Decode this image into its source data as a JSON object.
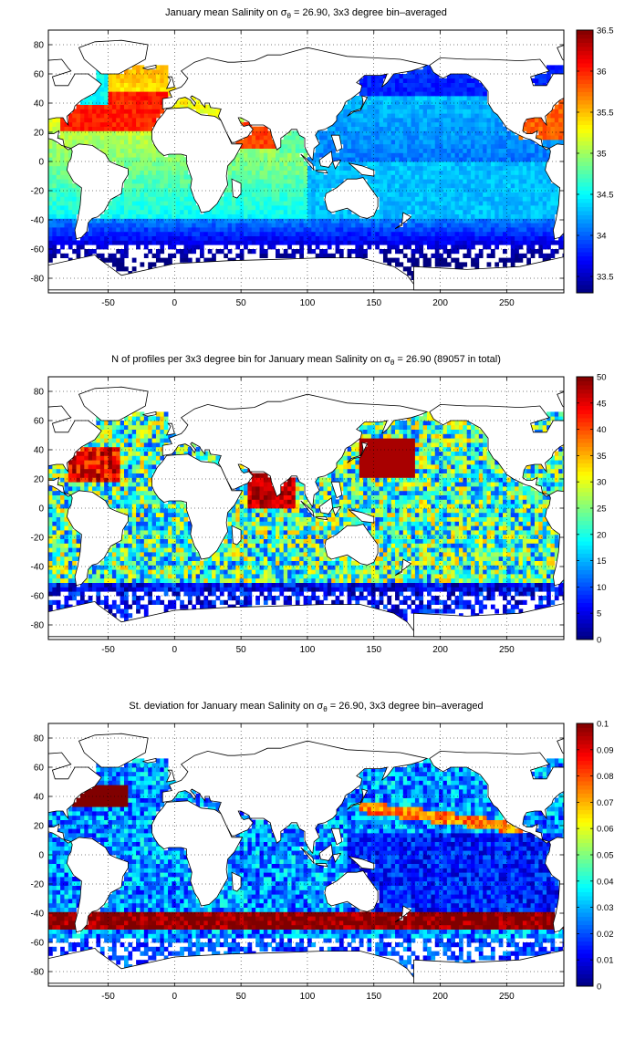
{
  "figure": {
    "panels": [
      {
        "id": "mean",
        "title_pre": "January mean Salinity on ",
        "title_sym": "σ",
        "title_sub": "θ",
        "title_post": " = 26.90, 3x3 degree bin–averaged",
        "colorbar_ticks": [
          "33.5",
          "34",
          "34.5",
          "35",
          "35.5",
          "36",
          "36.5"
        ]
      },
      {
        "id": "count",
        "title_pre": "N of profiles per 3x3 degree bin for January mean Salinity on ",
        "title_sym": "σ",
        "title_sub": "θ",
        "title_post": " = 26.90 (89057 in total)",
        "colorbar_ticks": [
          "0",
          "5",
          "10",
          "15",
          "20",
          "25",
          "30",
          "35",
          "40",
          "45",
          "50"
        ]
      },
      {
        "id": "std",
        "title_pre": "St. deviation for January mean Salinity on ",
        "title_sym": "σ",
        "title_sub": "θ",
        "title_post": " = 26.90, 3x3 degree bin–averaged",
        "colorbar_ticks": [
          "0",
          "0.01",
          "0.02",
          "0.03",
          "0.04",
          "0.05",
          "0.06",
          "0.07",
          "0.08",
          "0.09",
          "0.1"
        ]
      }
    ],
    "x_tick_labels": [
      "-50",
      "0",
      "50",
      "100",
      "150",
      "200",
      "250"
    ],
    "y_tick_labels": [
      "80",
      "60",
      "40",
      "20",
      "0",
      "-20",
      "-40",
      "-60",
      "-80"
    ]
  },
  "chart_data": [
    {
      "type": "heatmap",
      "title": "January mean Salinity on σθ = 26.90, 3x3 degree bin–averaged",
      "xlim": [
        -95,
        293
      ],
      "ylim": [
        -90,
        90
      ],
      "x_ticks": [
        -50,
        0,
        50,
        100,
        150,
        200,
        250
      ],
      "y_ticks": [
        -80,
        -60,
        -40,
        -20,
        0,
        20,
        40,
        60,
        80
      ],
      "grid": true,
      "colorbar": {
        "min": 33.3,
        "max": 36.5,
        "ticks": [
          33.5,
          34,
          34.5,
          35,
          35.5,
          36,
          36.5
        ],
        "colormap": "jet"
      },
      "bin_size_deg": 3,
      "regions": [
        {
          "lon": [
            -80,
            -10
          ],
          "lat": [
            20,
            45
          ],
          "value": 36.1
        },
        {
          "lon": [
            -60,
            0
          ],
          "lat": [
            0,
            20
          ],
          "value": 35.2
        },
        {
          "lon": [
            45,
            75
          ],
          "lat": [
            10,
            26
          ],
          "value": 35.9
        },
        {
          "lon": [
            -60,
            20
          ],
          "lat": [
            -40,
            0
          ],
          "value": 34.7
        },
        {
          "lon": [
            20,
            120
          ],
          "lat": [
            -40,
            25
          ],
          "value": 34.7
        },
        {
          "lon": [
            120,
            295
          ],
          "lat": [
            -40,
            60
          ],
          "value": 34.3
        },
        {
          "lon": [
            -95,
            293
          ],
          "lat": [
            -60,
            -40
          ],
          "value": 34.0
        },
        {
          "lon": [
            -95,
            293
          ],
          "lat": [
            -80,
            -60
          ],
          "value": 33.6
        }
      ]
    },
    {
      "type": "heatmap",
      "title": "N of profiles per 3x3 degree bin for January mean Salinity on σθ = 26.90 (89057 in total)",
      "xlim": [
        -95,
        293
      ],
      "ylim": [
        -90,
        90
      ],
      "x_ticks": [
        -50,
        0,
        50,
        100,
        150,
        200,
        250
      ],
      "y_ticks": [
        -80,
        -60,
        -40,
        -20,
        0,
        20,
        40,
        60,
        80
      ],
      "grid": true,
      "colorbar": {
        "min": 0,
        "max": 50,
        "ticks": [
          0,
          5,
          10,
          15,
          20,
          25,
          30,
          35,
          40,
          45,
          50
        ],
        "colormap": "jet"
      },
      "bin_size_deg": 3,
      "total_profiles": 89057,
      "regions": [
        {
          "lon": [
            140,
            180
          ],
          "lat": [
            20,
            45
          ],
          "value": 48
        },
        {
          "lon": [
            55,
            90
          ],
          "lat": [
            0,
            25
          ],
          "value": 45
        },
        {
          "lon": [
            -80,
            -40
          ],
          "lat": [
            20,
            40
          ],
          "value": 40
        },
        {
          "lon": [
            120,
            290
          ],
          "lat": [
            -50,
            20
          ],
          "value": 30
        },
        {
          "lon": [
            -60,
            20
          ],
          "lat": [
            -50,
            20
          ],
          "value": 27
        },
        {
          "lon": [
            20,
            120
          ],
          "lat": [
            -50,
            0
          ],
          "value": 25
        },
        {
          "lon": [
            -95,
            293
          ],
          "lat": [
            -65,
            -50
          ],
          "value": 8
        },
        {
          "lon": [
            -95,
            293
          ],
          "lat": [
            -80,
            -65
          ],
          "value": 3
        }
      ]
    },
    {
      "type": "heatmap",
      "title": "St. deviation for January mean Salinity on σθ = 26.90, 3x3 degree bin–averaged",
      "xlim": [
        -95,
        293
      ],
      "ylim": [
        -90,
        90
      ],
      "x_ticks": [
        -50,
        0,
        50,
        100,
        150,
        200,
        250
      ],
      "y_ticks": [
        -80,
        -60,
        -40,
        -20,
        0,
        20,
        40,
        60,
        80
      ],
      "grid": true,
      "colorbar": {
        "min": 0,
        "max": 0.1,
        "ticks": [
          0,
          0.01,
          0.02,
          0.03,
          0.04,
          0.05,
          0.06,
          0.07,
          0.08,
          0.09,
          0.1
        ],
        "colormap": "jet"
      },
      "bin_size_deg": 3,
      "regions": [
        {
          "lon": [
            -95,
            293
          ],
          "lat": [
            -52,
            -40
          ],
          "value": 0.1
        },
        {
          "lon": [
            -75,
            -40
          ],
          "lat": [
            35,
            45
          ],
          "value": 0.1
        },
        {
          "lon": [
            140,
            260
          ],
          "lat": [
            20,
            40
          ],
          "value": 0.07
        },
        {
          "lon": [
            120,
            290
          ],
          "lat": [
            -40,
            20
          ],
          "value": 0.01
        },
        {
          "lon": [
            -60,
            20
          ],
          "lat": [
            -40,
            20
          ],
          "value": 0.03
        },
        {
          "lon": [
            20,
            120
          ],
          "lat": [
            -40,
            25
          ],
          "value": 0.02
        },
        {
          "lon": [
            -95,
            293
          ],
          "lat": [
            -80,
            -55
          ],
          "value": 0.015
        }
      ]
    }
  ]
}
